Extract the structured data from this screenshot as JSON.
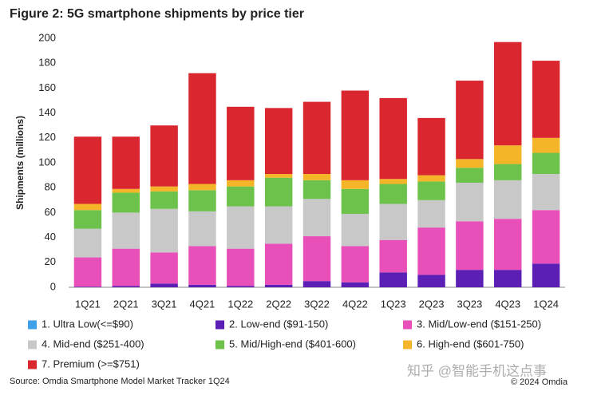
{
  "chart_data": {
    "type": "stacked_bar",
    "title": "Figure 2: 5G smartphone shipments by price tier",
    "y_label": "Shipments (millions)",
    "source": "Source: Omdia Smartphone Model Market Tracker 1Q24",
    "copyright": "© 2024 Omdia",
    "watermark": "知乎 @智能手机这点事",
    "categories": [
      "1Q21",
      "2Q21",
      "3Q21",
      "4Q21",
      "1Q22",
      "2Q22",
      "3Q22",
      "4Q22",
      "1Q23",
      "2Q23",
      "3Q23",
      "4Q23",
      "1Q24"
    ],
    "series": [
      {
        "name": "1. Ultra Low(<=$90)",
        "color": "#3ea0e8",
        "values": [
          0,
          0,
          0,
          0,
          0,
          0,
          0,
          0,
          0,
          0,
          0,
          0,
          0
        ]
      },
      {
        "name": "2. Low-end ($91-150)",
        "color": "#5b1fb5",
        "values": [
          0.5,
          1,
          3,
          2,
          1,
          2,
          5,
          4,
          12,
          10,
          14,
          14,
          19
        ]
      },
      {
        "name": "3. Mid/Low-end ($151-250)",
        "color": "#e84fb8",
        "values": [
          23.5,
          30,
          25,
          31,
          30,
          33,
          36,
          29,
          26,
          38,
          39,
          41,
          43
        ]
      },
      {
        "name": "4. Mid-end ($251-400)",
        "color": "#c8c8c8",
        "values": [
          23,
          29,
          35,
          28,
          34,
          30,
          30,
          26,
          29,
          22,
          31,
          31,
          29
        ]
      },
      {
        "name": "5. Mid/High-end ($401-600)",
        "color": "#6cc24a",
        "values": [
          15,
          16,
          14,
          17,
          16,
          23,
          15,
          20,
          16,
          15,
          12,
          13,
          17
        ]
      },
      {
        "name": "6. High-end ($601-750)",
        "color": "#f5b528",
        "values": [
          5,
          3,
          4,
          5,
          5,
          3,
          5,
          7,
          4,
          5,
          7,
          15,
          12
        ]
      },
      {
        "name": "7. Premium (>=$751)",
        "color": "#d9262f",
        "values": [
          54,
          42,
          49,
          89,
          59,
          53,
          58,
          72,
          65,
          46,
          63,
          83,
          62
        ]
      }
    ],
    "ylim": [
      0,
      200
    ],
    "yticks": [
      0,
      20,
      40,
      60,
      80,
      100,
      120,
      140,
      160,
      180,
      200
    ],
    "grid": false
  }
}
